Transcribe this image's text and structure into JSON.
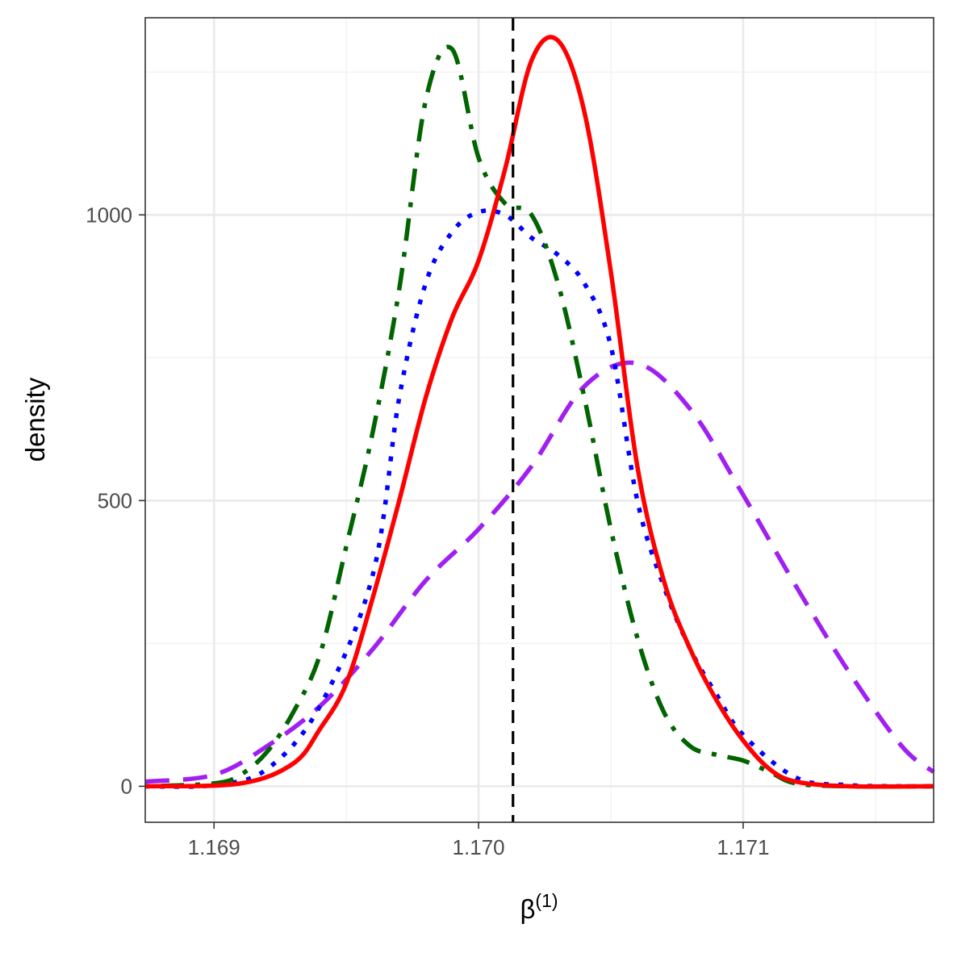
{
  "chart_data": {
    "type": "line",
    "title": "",
    "xlabel": "β",
    "xlabel_superscript": "(1)",
    "ylabel": "density",
    "xlim": [
      1.16874,
      1.17172
    ],
    "ylim": [
      -63,
      1345
    ],
    "x_ticks": [
      1.169,
      1.17,
      1.171
    ],
    "x_tick_labels": [
      "1.169",
      "1.170",
      "1.171"
    ],
    "y_ticks": [
      0,
      500,
      1000
    ],
    "y_tick_labels": [
      "0",
      "500",
      "1000"
    ],
    "grid": true,
    "legend": "none",
    "reference_line": {
      "x": 1.17013,
      "style": "dashed",
      "color": "#000000"
    },
    "series": [
      {
        "color": "#A020F0",
        "style": "dashed",
        "x": [
          1.16874,
          1.169,
          1.1692,
          1.1694,
          1.1696,
          1.1698,
          1.17,
          1.1702,
          1.1704,
          1.1706,
          1.1708,
          1.171,
          1.1712,
          1.1714,
          1.1716,
          1.17172
        ],
        "y": [
          8,
          20,
          70,
          140,
          240,
          360,
          450,
          560,
          700,
          740,
          660,
          510,
          350,
          200,
          70,
          25
        ]
      },
      {
        "color": "#0000FF",
        "style": "dotted",
        "x": [
          1.16874,
          1.169,
          1.1692,
          1.1694,
          1.1696,
          1.1697,
          1.1698,
          1.1699,
          1.17,
          1.1701,
          1.1702,
          1.1703,
          1.1704,
          1.1705,
          1.1706,
          1.1707,
          1.1708,
          1.1709,
          1.171,
          1.1712,
          1.1714,
          1.1716,
          1.17172
        ],
        "y": [
          0,
          2,
          30,
          140,
          370,
          680,
          880,
          970,
          1005,
          1000,
          960,
          930,
          880,
          770,
          500,
          350,
          240,
          160,
          90,
          15,
          2,
          0,
          0
        ]
      },
      {
        "color": "#006400",
        "style": "dotdash",
        "x": [
          1.16874,
          1.169,
          1.1691,
          1.1692,
          1.1693,
          1.1694,
          1.1695,
          1.1696,
          1.1697,
          1.1698,
          1.1699,
          1.17,
          1.1701,
          1.1702,
          1.1703,
          1.1704,
          1.1705,
          1.1706,
          1.1707,
          1.1708,
          1.1709,
          1.171,
          1.1711,
          1.1712,
          1.1714,
          1.17172
        ],
        "y": [
          0,
          5,
          20,
          60,
          130,
          230,
          420,
          620,
          870,
          1200,
          1290,
          1100,
          1020,
          1000,
          880,
          680,
          450,
          260,
          130,
          70,
          55,
          45,
          25,
          5,
          0,
          0
        ]
      },
      {
        "color": "#FF0000",
        "style": "solid",
        "x": [
          1.16874,
          1.1691,
          1.1693,
          1.1694,
          1.1695,
          1.1696,
          1.1697,
          1.1698,
          1.1699,
          1.17,
          1.1701,
          1.1702,
          1.1703,
          1.1704,
          1.1705,
          1.1706,
          1.1707,
          1.1708,
          1.1709,
          1.171,
          1.1711,
          1.1712,
          1.1714,
          1.17172
        ],
        "y": [
          0,
          5,
          40,
          100,
          180,
          330,
          500,
          680,
          820,
          920,
          1080,
          1270,
          1305,
          1180,
          900,
          560,
          360,
          240,
          150,
          80,
          30,
          8,
          0,
          0
        ]
      }
    ]
  }
}
